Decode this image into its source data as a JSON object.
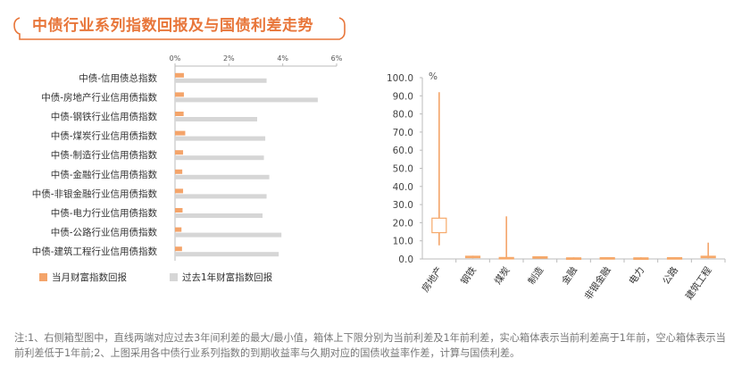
{
  "header": {
    "title": "中债行业系列指数回报及与国债利差走势"
  },
  "colors": {
    "accent": "#e8763a",
    "orange_bar": "#f4a46a",
    "gray_bar": "#d6d6d6",
    "box_fill": "#f6a96a"
  },
  "chart_data": [
    {
      "type": "bar",
      "orientation": "horizontal",
      "categories": [
        "中债-信用债总指数",
        "中债-房地产行业信用债指数",
        "中债-钢铁行业信用债指数",
        "中债-煤炭行业信用债指数",
        "中债-制造行业信用债指数",
        "中债-金融行业信用债指数",
        "中债-非银金融行业信用债指数",
        "中债-电力行业信用债指数",
        "中债-公路行业信用债指数",
        "中债-建筑工程行业信用债指数"
      ],
      "series": [
        {
          "name": "当月财富指数回报",
          "color": "#f4a46a",
          "values": [
            0.33,
            0.33,
            0.32,
            0.38,
            0.3,
            0.27,
            0.3,
            0.28,
            0.24,
            0.26
          ]
        },
        {
          "name": "过去1年财富指数回报",
          "color": "#d6d6d6",
          "values": [
            3.4,
            5.3,
            3.05,
            3.35,
            3.3,
            3.5,
            3.4,
            3.25,
            3.95,
            3.85
          ]
        }
      ],
      "xlim": [
        0,
        6
      ],
      "xticks": [
        "0%",
        "2%",
        "4%",
        "6%"
      ],
      "legend_position": "bottom",
      "grid": false
    },
    {
      "type": "box",
      "unit_label": "%",
      "categories": [
        "房地产",
        "钢铁",
        "煤炭",
        "制造",
        "金融",
        "非银金融",
        "电力",
        "公路",
        "建筑工程"
      ],
      "series": [
        {
          "category": "房地产",
          "min": 7.5,
          "max": 92.0,
          "current": 14.5,
          "year_ago": 22.5
        },
        {
          "category": "钢铁",
          "min": 0.4,
          "max": 1.8,
          "current": 1.5,
          "year_ago": 0.9
        },
        {
          "category": "煤炭",
          "min": 0.3,
          "max": 23.5,
          "current": 0.8,
          "year_ago": 0.5
        },
        {
          "category": "制造",
          "min": 0.4,
          "max": 1.5,
          "current": 1.2,
          "year_ago": 0.8
        },
        {
          "category": "金融",
          "min": 0.2,
          "max": 0.9,
          "current": 0.6,
          "year_ago": 0.4
        },
        {
          "category": "非银金融",
          "min": 0.3,
          "max": 1.0,
          "current": 0.7,
          "year_ago": 0.5
        },
        {
          "category": "电力",
          "min": 0.2,
          "max": 0.9,
          "current": 0.6,
          "year_ago": 0.4
        },
        {
          "category": "公路",
          "min": 0.2,
          "max": 1.0,
          "current": 0.7,
          "year_ago": 0.5
        },
        {
          "category": "建筑工程",
          "min": 0.4,
          "max": 9.0,
          "current": 1.5,
          "year_ago": 1.0
        }
      ],
      "ylim": [
        0,
        100
      ],
      "yticks": [
        "0.0",
        "10.0",
        "20.0",
        "30.0",
        "40.0",
        "50.0",
        "60.0",
        "70.0",
        "80.0",
        "90.0",
        "100.0"
      ],
      "grid": false
    }
  ],
  "footnote": "注:1、右侧箱型图中，直线两端对应过去3年间利差的最大/最小值，箱体上下限分别为当前利差及1年前利差，实心箱体表示当前利差高于1年前，空心箱体表示当前利差低于1年前;2、上图采用各中债行业系列指数的到期收益率与久期对应的国债收益率作差，计算与国债利差。"
}
